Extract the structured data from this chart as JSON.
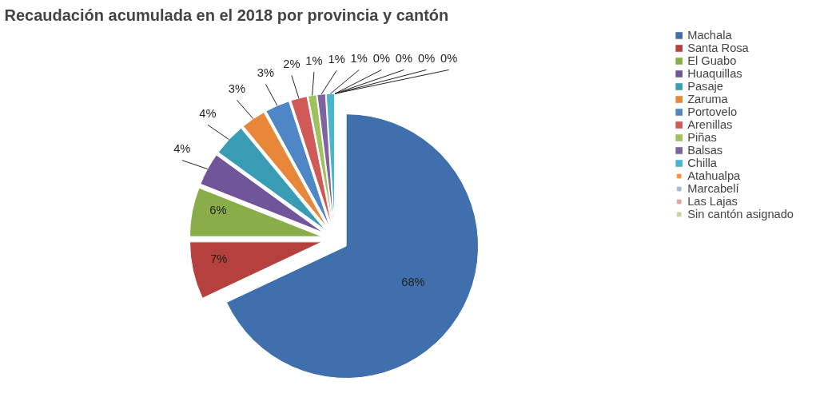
{
  "chart_data": {
    "type": "pie",
    "title": "Recaudación acumulada en el 2018 por provincia y cantón",
    "categories": [
      "Machala",
      "Santa Rosa",
      "El Guabo",
      "Huaquillas",
      "Pasaje",
      "Zaruma",
      "Portovelo",
      "Arenillas",
      "Piñas",
      "Balsas",
      "Chilla",
      "Atahualpa",
      "Marcabelí",
      "Las Lajas",
      "Sin cantón asignado"
    ],
    "values": [
      68,
      7,
      6,
      4,
      4,
      3,
      3,
      2,
      1,
      1,
      1,
      0,
      0,
      0,
      0
    ],
    "colors": [
      "#3f6fad",
      "#b5403d",
      "#8aad4a",
      "#70559a",
      "#3a9bb5",
      "#e8863a",
      "#4f86c6",
      "#d05a57",
      "#a0c25e",
      "#8064a2",
      "#4bb4d0",
      "#f79646",
      "#a9bbdb",
      "#e6a3a3",
      "#c3d69b"
    ],
    "value_labels": [
      "68%",
      "7%",
      "6%",
      "4%",
      "4%",
      "3%",
      "3%",
      "2%",
      "1%",
      "1%",
      "1%",
      "0%",
      "0%",
      "0%",
      "0%"
    ],
    "data_labels": true,
    "legend": "right"
  }
}
